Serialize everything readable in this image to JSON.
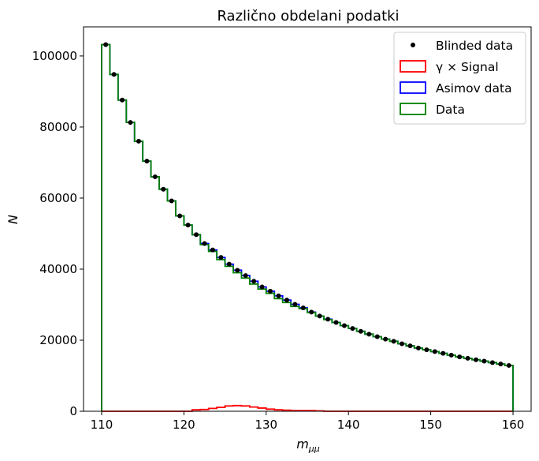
{
  "colors": {
    "blinded": "#000000",
    "signal": "#ff0000",
    "asimov": "#0000ff",
    "data": "#008000"
  },
  "chart_data": {
    "type": "histogram",
    "title": "Različno obdelani podatki",
    "xlabel": "m_μμ",
    "xlabel_main": "m",
    "xlabel_sub": "μμ",
    "ylabel": "N",
    "xlim": [
      107.8,
      162.2
    ],
    "ylim": [
      0,
      108200
    ],
    "xticks": [
      110,
      120,
      130,
      140,
      150,
      160
    ],
    "yticks": [
      0,
      20000,
      40000,
      60000,
      80000,
      100000
    ],
    "legend_position": "upper right",
    "bin_edges_start": 110,
    "bin_width": 1,
    "legend": [
      {
        "key": "blinded",
        "label": "Blinded data",
        "marker": "dot"
      },
      {
        "key": "signal",
        "label": "γ ×  Signal",
        "marker": "box"
      },
      {
        "key": "asimov",
        "label": "Asimov data",
        "marker": "box"
      },
      {
        "key": "data",
        "label": "Data",
        "marker": "box"
      }
    ],
    "series": [
      {
        "key": "asimov",
        "name": "Asimov data",
        "values": [
          103200,
          94800,
          87600,
          81300,
          76000,
          70400,
          66000,
          62500,
          59200,
          55000,
          52400,
          49700,
          47200,
          45400,
          43300,
          41400,
          39700,
          38200,
          36600,
          35000,
          33800,
          32500,
          31300,
          30100,
          29100,
          27900,
          26800,
          25900,
          25000,
          24100,
          23300,
          22500,
          21700,
          21000,
          20300,
          19700,
          19000,
          18400,
          17800,
          17300,
          16800,
          16300,
          15800,
          15300,
          14900,
          14500,
          14100,
          13700,
          13300,
          12900
        ]
      },
      {
        "key": "data",
        "name": "Data",
        "values": [
          103200,
          94800,
          87600,
          81300,
          76000,
          70400,
          66000,
          62500,
          59200,
          55000,
          52400,
          49700,
          46900,
          45000,
          42700,
          40800,
          39000,
          37500,
          35800,
          34400,
          33200,
          31700,
          30600,
          29500,
          28900,
          27800,
          26800,
          25800,
          25000,
          24100,
          23300,
          22500,
          21700,
          21000,
          20300,
          19700,
          19000,
          18400,
          17800,
          17300,
          16800,
          16300,
          15800,
          15300,
          14900,
          14500,
          14100,
          13700,
          13300,
          12900
        ]
      },
      {
        "key": "signal",
        "name": "γ ×  Signal",
        "values": [
          0,
          0,
          0,
          0,
          0,
          0,
          0,
          0,
          0,
          0,
          0,
          400,
          500,
          800,
          1100,
          1500,
          1600,
          1500,
          1200,
          900,
          600,
          400,
          300,
          200,
          200,
          200,
          100,
          0,
          0,
          0,
          0,
          0,
          0,
          0,
          0,
          0,
          0,
          0,
          0,
          0,
          0,
          0,
          0,
          0,
          0,
          0,
          0,
          0,
          0,
          0
        ]
      },
      {
        "key": "blinded",
        "name": "Blinded data",
        "type": "scatter",
        "x": [
          110.5,
          111.5,
          112.5,
          113.5,
          114.5,
          115.5,
          116.5,
          117.5,
          118.5,
          119.5,
          120.5,
          121.5,
          122.5,
          123.5,
          124.5,
          125.5,
          126.5,
          127.5,
          128.5,
          129.5,
          130.5,
          131.5,
          132.5,
          133.5,
          134.5,
          135.5,
          136.5,
          137.5,
          138.5,
          139.5,
          140.5,
          141.5,
          142.5,
          143.5,
          144.5,
          145.5,
          146.5,
          147.5,
          148.5,
          149.5,
          150.5,
          151.5,
          152.5,
          153.5,
          154.5,
          155.5,
          156.5,
          157.5,
          158.5,
          159.5
        ],
        "values": [
          103200,
          94800,
          87600,
          81300,
          76000,
          70400,
          66000,
          62500,
          59200,
          55000,
          52400,
          49700,
          47200,
          45400,
          43300,
          41400,
          39700,
          38200,
          36600,
          35000,
          33800,
          32500,
          31300,
          30100,
          29100,
          27900,
          26800,
          25900,
          25000,
          24100,
          23300,
          22500,
          21700,
          21000,
          20300,
          19700,
          19000,
          18400,
          17800,
          17300,
          16800,
          16300,
          15800,
          15300,
          14900,
          14500,
          14100,
          13700,
          13300,
          12900
        ]
      }
    ]
  }
}
